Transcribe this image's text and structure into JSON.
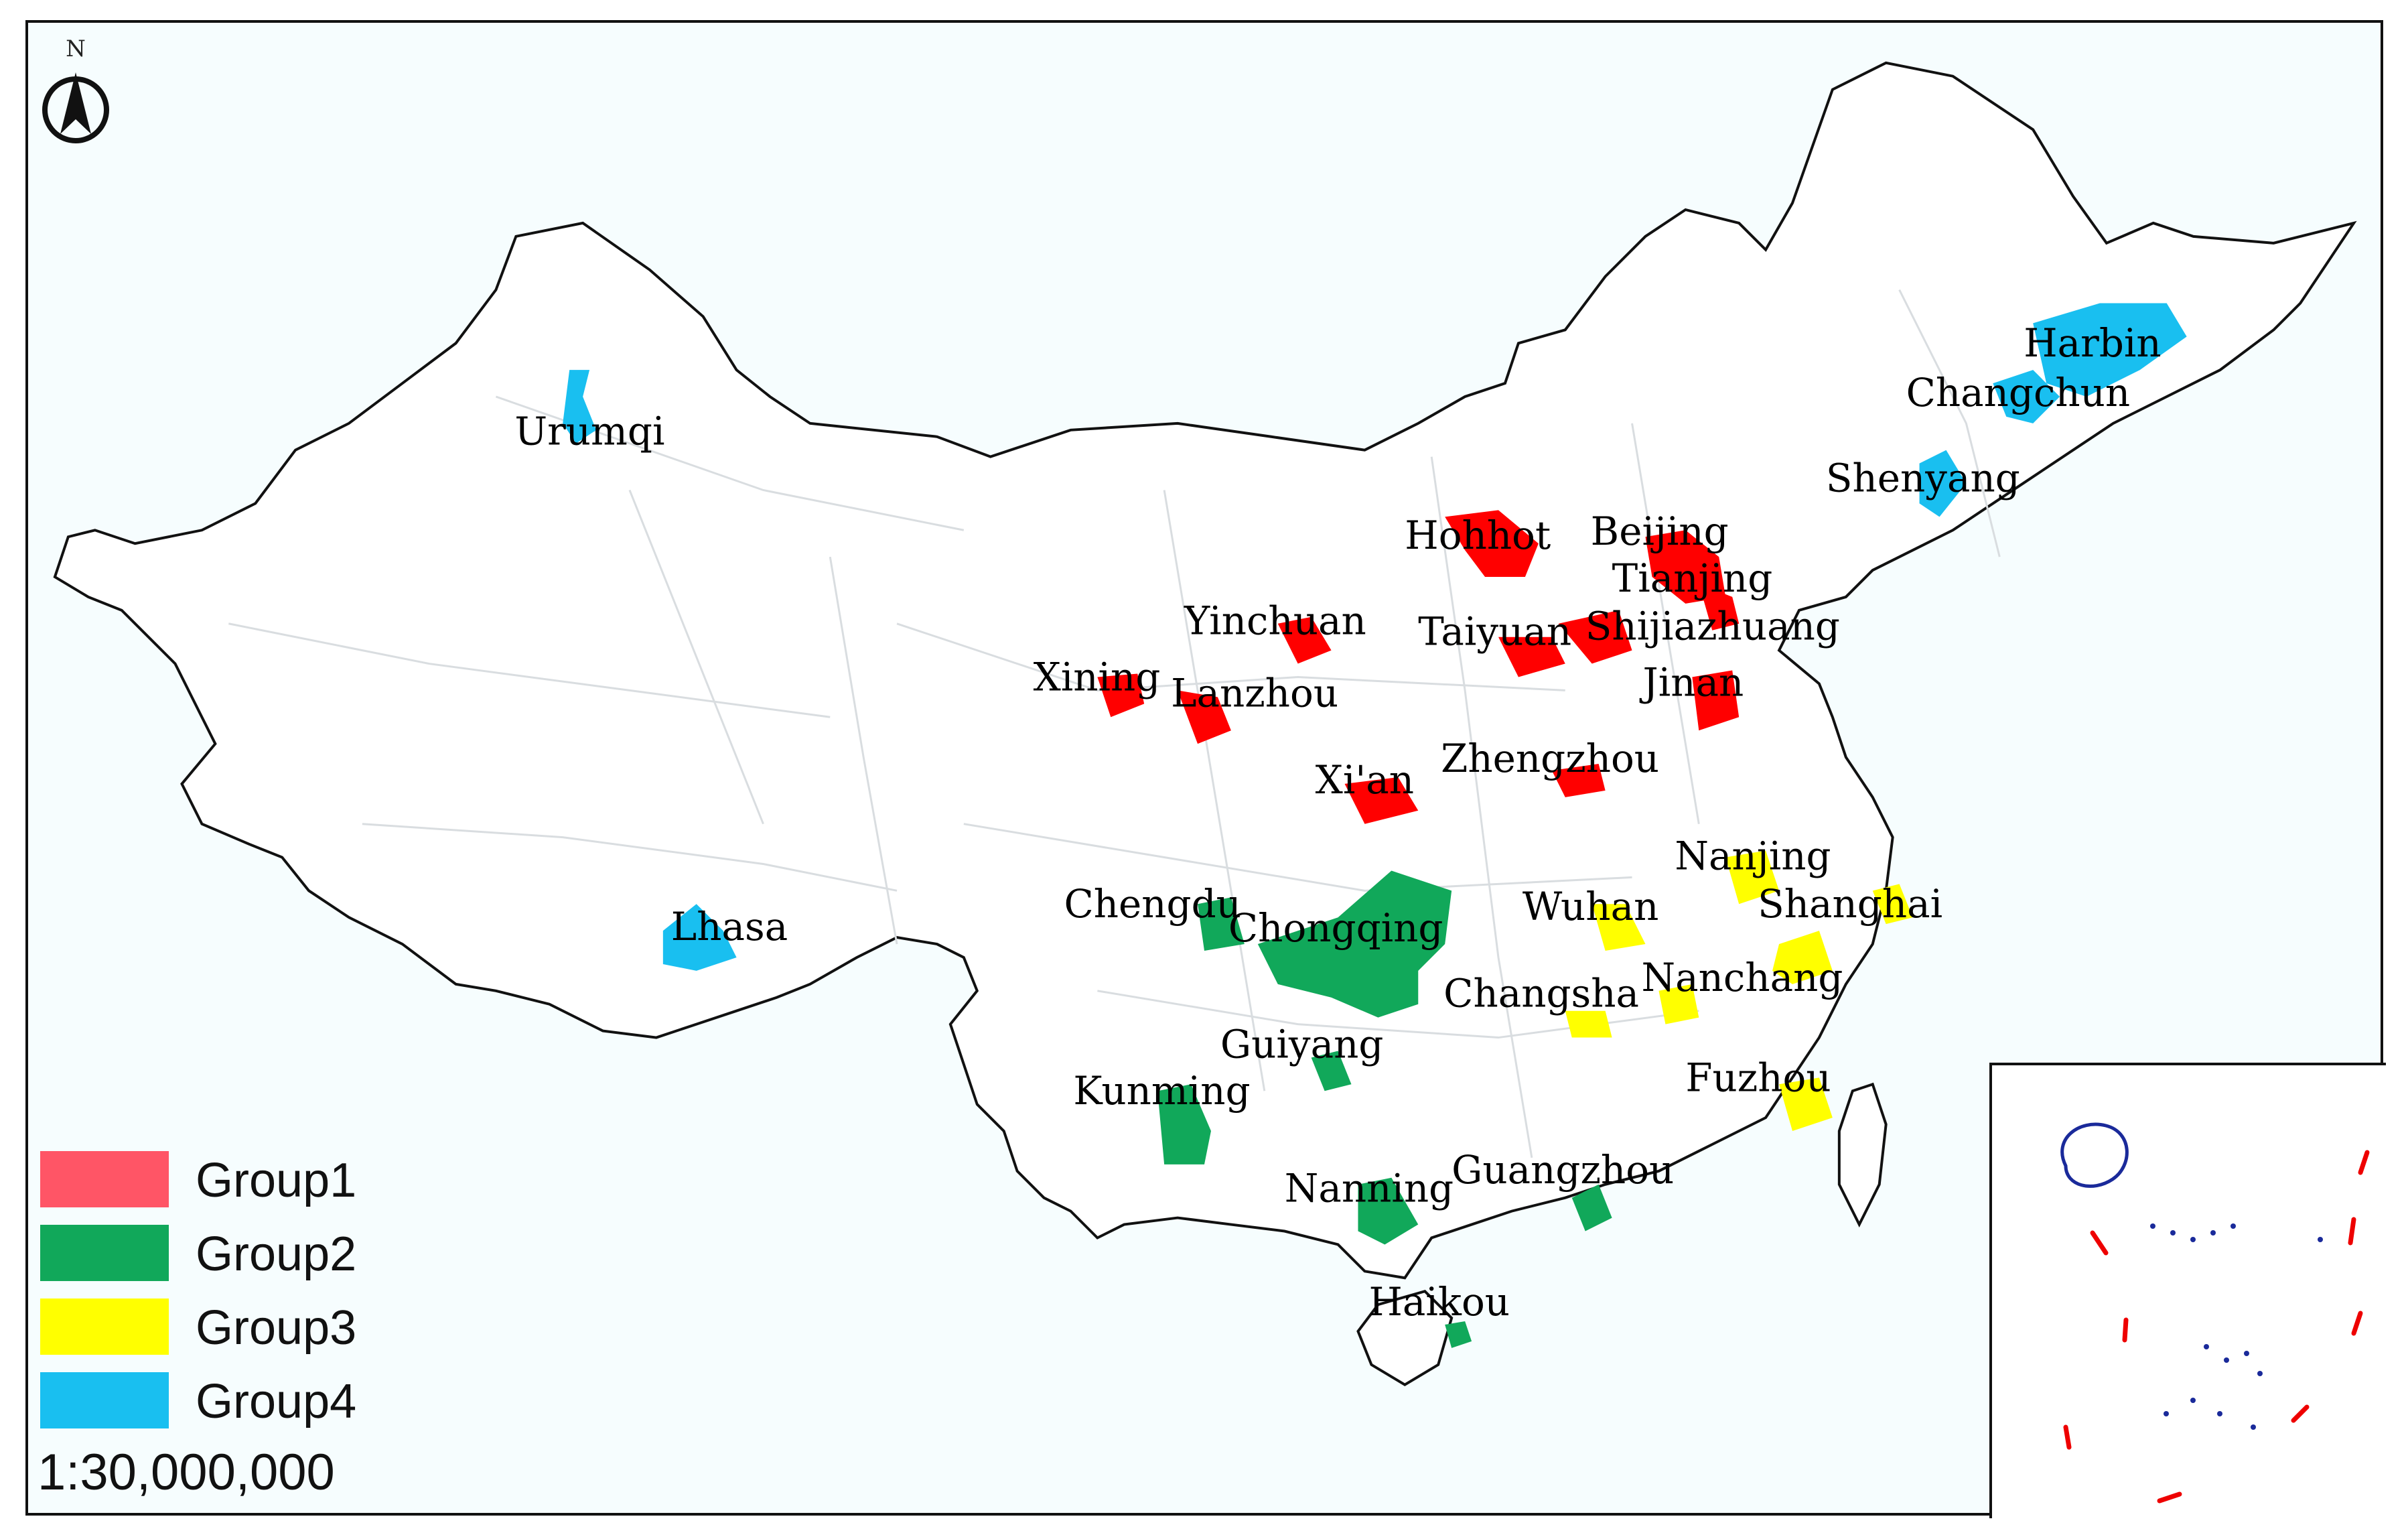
{
  "map": {
    "north_label": "N",
    "scale_text": "1:30,000,000",
    "colors": {
      "group1": "#ff0000",
      "group2": "#11a85a",
      "group3": "#ffff00",
      "group4": "#19bff0",
      "legend_group1": "#ff5566",
      "border": "#111111",
      "province_lines": "#d9dde0",
      "background": "#f6fdfe"
    },
    "legend": [
      {
        "label": "Group1",
        "color": "#ff5566"
      },
      {
        "label": "Group2",
        "color": "#11a85a"
      },
      {
        "label": "Group3",
        "color": "#ffff00"
      },
      {
        "label": "Group4",
        "color": "#19bff0"
      }
    ],
    "cities": {
      "urumqi": {
        "name": "Urumqi",
        "group": "Group4"
      },
      "harbin": {
        "name": "Harbin",
        "group": "Group4"
      },
      "changchun": {
        "name": "Changchun",
        "group": "Group4"
      },
      "shenyang": {
        "name": "Shenyang",
        "group": "Group4"
      },
      "lhasa": {
        "name": "Lhasa",
        "group": "Group4"
      },
      "hohhot": {
        "name": "Hohhot",
        "group": "Group1"
      },
      "beijing": {
        "name": "Beijing",
        "group": "Group1"
      },
      "tianjing": {
        "name": "Tianjing",
        "group": "Group1"
      },
      "shijiazhuang": {
        "name": "Shijiazhuang",
        "group": "Group1"
      },
      "taiyuan": {
        "name": "Taiyuan",
        "group": "Group1"
      },
      "yinchuan": {
        "name": "Yinchuan",
        "group": "Group1"
      },
      "xining": {
        "name": "Xining",
        "group": "Group1"
      },
      "lanzhou": {
        "name": "Lanzhou",
        "group": "Group1"
      },
      "jinan": {
        "name": "Jinan",
        "group": "Group1"
      },
      "xian": {
        "name": "Xi'an",
        "group": "Group1"
      },
      "zhengzhou": {
        "name": "Zhengzhou",
        "group": "Group1"
      },
      "chengdu": {
        "name": "Chengdu",
        "group": "Group2"
      },
      "chongqing": {
        "name": "Chongqing",
        "group": "Group2"
      },
      "guiyang": {
        "name": "Guiyang",
        "group": "Group2"
      },
      "kunming": {
        "name": "Kunming",
        "group": "Group2"
      },
      "nanning": {
        "name": "Nanning",
        "group": "Group2"
      },
      "guangzhou": {
        "name": "Guangzhou",
        "group": "Group2"
      },
      "haikou": {
        "name": "Haikou",
        "group": "Group2"
      },
      "nanjing": {
        "name": "Nanjing",
        "group": "Group3"
      },
      "shanghai": {
        "name": "Shanghai",
        "group": "Group3"
      },
      "wuhan": {
        "name": "Wuhan",
        "group": "Group3"
      },
      "changsha": {
        "name": "Changsha",
        "group": "Group3"
      },
      "nanchang": {
        "name": "Nanchang",
        "group": "Group3"
      },
      "fuzhou": {
        "name": "Fuzhou",
        "group": "Group3"
      }
    }
  }
}
